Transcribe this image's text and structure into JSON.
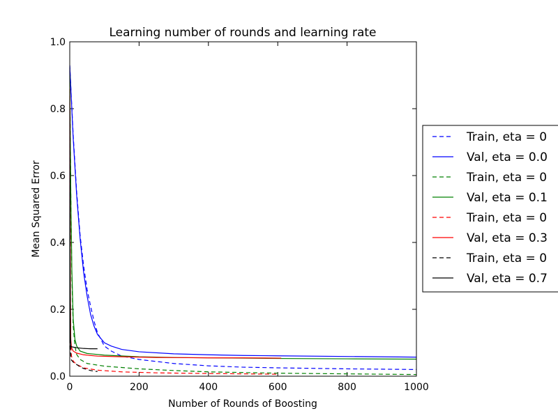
{
  "chart_data": {
    "type": "line",
    "title": "Learning number of rounds and learning rate",
    "xlabel": "Number of Rounds of Boosting",
    "ylabel": "Mean Squared Error",
    "xlim": [
      0,
      1000
    ],
    "ylim": [
      0,
      1.0
    ],
    "xticks": [
      0,
      200,
      400,
      600,
      800,
      1000
    ],
    "xtick_labels": [
      "0",
      "200",
      "400",
      "600",
      "800",
      "1000"
    ],
    "yticks": [
      0.0,
      0.2,
      0.4,
      0.6,
      0.8,
      1.0
    ],
    "ytick_labels": [
      "0.0",
      "0.2",
      "0.4",
      "0.6",
      "0.8",
      "1.0"
    ],
    "grid": false,
    "legend_position": "outside-right (clipped)",
    "series": [
      {
        "name": "Train, eta = 0",
        "color": "#0000ff",
        "dash": "dashed",
        "points": [
          [
            0,
            0.93
          ],
          [
            10,
            0.72
          ],
          [
            20,
            0.55
          ],
          [
            30,
            0.42
          ],
          [
            40,
            0.33
          ],
          [
            50,
            0.26
          ],
          [
            60,
            0.21
          ],
          [
            70,
            0.165
          ],
          [
            80,
            0.13
          ],
          [
            100,
            0.09
          ],
          [
            120,
            0.075
          ],
          [
            150,
            0.06
          ],
          [
            200,
            0.05
          ],
          [
            300,
            0.038
          ],
          [
            400,
            0.031
          ],
          [
            500,
            0.027
          ],
          [
            600,
            0.025
          ],
          [
            800,
            0.022
          ],
          [
            1000,
            0.02
          ]
        ]
      },
      {
        "name": "Val, eta = 0.0",
        "color": "#0000ff",
        "dash": "solid",
        "points": [
          [
            0,
            0.93
          ],
          [
            10,
            0.71
          ],
          [
            20,
            0.54
          ],
          [
            30,
            0.41
          ],
          [
            40,
            0.31
          ],
          [
            50,
            0.24
          ],
          [
            60,
            0.185
          ],
          [
            70,
            0.15
          ],
          [
            80,
            0.125
          ],
          [
            100,
            0.1
          ],
          [
            120,
            0.09
          ],
          [
            150,
            0.08
          ],
          [
            200,
            0.073
          ],
          [
            300,
            0.067
          ],
          [
            400,
            0.064
          ],
          [
            500,
            0.062
          ],
          [
            600,
            0.061
          ],
          [
            800,
            0.059
          ],
          [
            1000,
            0.057
          ]
        ]
      },
      {
        "name": "Train, eta = 0",
        "color": "#008000",
        "dash": "dashed",
        "points": [
          [
            0,
            0.9
          ],
          [
            3,
            0.55
          ],
          [
            6,
            0.3
          ],
          [
            10,
            0.15
          ],
          [
            15,
            0.09
          ],
          [
            20,
            0.065
          ],
          [
            30,
            0.05
          ],
          [
            50,
            0.038
          ],
          [
            100,
            0.03
          ],
          [
            200,
            0.022
          ],
          [
            300,
            0.017
          ],
          [
            400,
            0.013
          ],
          [
            500,
            0.011
          ],
          [
            600,
            0.009
          ],
          [
            800,
            0.007
          ],
          [
            1000,
            0.005
          ]
        ]
      },
      {
        "name": "Val, eta = 0.1",
        "color": "#008000",
        "dash": "solid",
        "points": [
          [
            0,
            0.9
          ],
          [
            3,
            0.55
          ],
          [
            6,
            0.32
          ],
          [
            10,
            0.17
          ],
          [
            15,
            0.11
          ],
          [
            20,
            0.09
          ],
          [
            30,
            0.075
          ],
          [
            50,
            0.068
          ],
          [
            100,
            0.063
          ],
          [
            200,
            0.058
          ],
          [
            300,
            0.056
          ],
          [
            400,
            0.055
          ],
          [
            500,
            0.054
          ],
          [
            600,
            0.053
          ],
          [
            800,
            0.052
          ],
          [
            1000,
            0.051
          ]
        ]
      },
      {
        "name": "Train, eta = 0",
        "color": "#ff0000",
        "dash": "dashed",
        "points": [
          [
            0,
            0.86
          ],
          [
            1,
            0.5
          ],
          [
            2,
            0.2
          ],
          [
            3,
            0.09
          ],
          [
            5,
            0.06
          ],
          [
            10,
            0.045
          ],
          [
            20,
            0.035
          ],
          [
            40,
            0.025
          ],
          [
            80,
            0.018
          ],
          [
            150,
            0.013
          ],
          [
            250,
            0.01
          ],
          [
            400,
            0.008
          ],
          [
            500,
            0.007
          ],
          [
            600,
            0.006
          ]
        ]
      },
      {
        "name": "Val, eta = 0.3",
        "color": "#ff0000",
        "dash": "solid",
        "points": [
          [
            0,
            0.86
          ],
          [
            1,
            0.5
          ],
          [
            2,
            0.22
          ],
          [
            3,
            0.11
          ],
          [
            5,
            0.085
          ],
          [
            10,
            0.075
          ],
          [
            20,
            0.069
          ],
          [
            40,
            0.064
          ],
          [
            80,
            0.06
          ],
          [
            150,
            0.058
          ],
          [
            250,
            0.056
          ],
          [
            400,
            0.055
          ],
          [
            500,
            0.055
          ],
          [
            610,
            0.054
          ]
        ]
      },
      {
        "name": "Train, eta = 0",
        "color": "#000000",
        "dash": "dashed",
        "points": [
          [
            0,
            0.8
          ],
          [
            1,
            0.3
          ],
          [
            2,
            0.1
          ],
          [
            3,
            0.06
          ],
          [
            5,
            0.048
          ],
          [
            10,
            0.042
          ],
          [
            20,
            0.035
          ],
          [
            30,
            0.028
          ],
          [
            40,
            0.023
          ],
          [
            50,
            0.02
          ],
          [
            60,
            0.017
          ],
          [
            70,
            0.015
          ],
          [
            80,
            0.014
          ]
        ]
      },
      {
        "name": "Val, eta = 0.7",
        "color": "#000000",
        "dash": "solid",
        "points": [
          [
            0,
            0.8
          ],
          [
            1,
            0.3
          ],
          [
            2,
            0.12
          ],
          [
            3,
            0.09
          ],
          [
            5,
            0.088
          ],
          [
            10,
            0.087
          ],
          [
            20,
            0.085
          ],
          [
            40,
            0.083
          ],
          [
            60,
            0.082
          ],
          [
            80,
            0.082
          ]
        ]
      }
    ]
  }
}
